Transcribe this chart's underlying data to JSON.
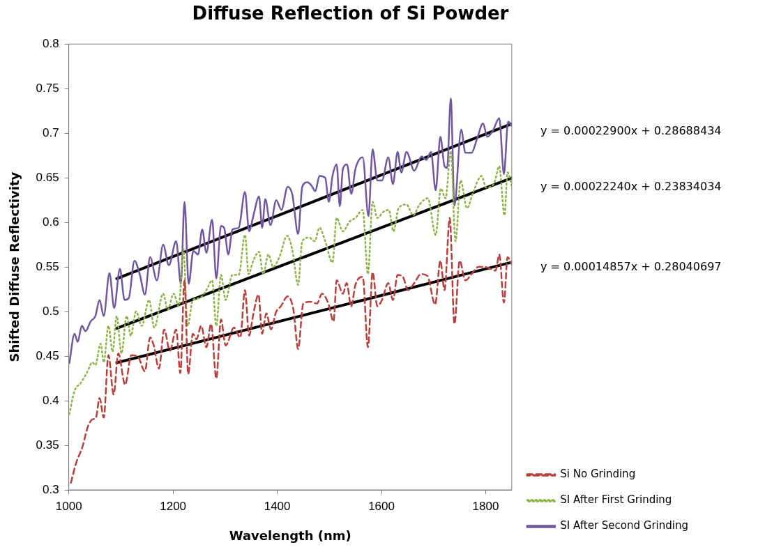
{
  "chart_data": {
    "type": "line",
    "title": "Diffuse Reflection of Si Powder",
    "xlabel": "Wavelength (nm)",
    "ylabel": "Shifted Diffuse Reflectivity",
    "xlim": [
      1000,
      1850
    ],
    "xticks": [
      1000,
      1200,
      1400,
      1600,
      1800
    ],
    "ylim": [
      0.3,
      0.8
    ],
    "yticks": [
      0.3,
      0.35,
      0.4,
      0.45,
      0.5,
      0.55,
      0.6,
      0.65,
      0.7,
      0.75,
      0.8
    ],
    "legend": "right",
    "marker": "none",
    "annotations": [
      "y = 0.00022900x + 0.28688434",
      "y = 0.00022240x + 0.23834034",
      "y = 0.00014857x + 0.28040697"
    ],
    "series": [
      {
        "name": "Si No Grinding",
        "color": "#b7403d",
        "line_style": "dashed",
        "x": [
          1004,
          1014,
          1026,
          1036,
          1045,
          1052,
          1059,
          1067,
          1076,
          1086,
          1095,
          1108,
          1120,
          1133,
          1146,
          1156,
          1163,
          1173,
          1183,
          1194,
          1206,
          1214,
          1222,
          1229,
          1238,
          1245,
          1254,
          1264,
          1273,
          1283,
          1292,
          1301,
          1317,
          1329,
          1338,
          1346,
          1354,
          1364,
          1371,
          1379,
          1388,
          1398,
          1407,
          1420,
          1431,
          1440,
          1450,
          1464,
          1476,
          1486,
          1498,
          1508,
          1514,
          1526,
          1533,
          1542,
          1550,
          1564,
          1574,
          1583,
          1592,
          1601,
          1613,
          1622,
          1631,
          1641,
          1651,
          1663,
          1676,
          1688,
          1703,
          1713,
          1721,
          1731,
          1740,
          1750,
          1761,
          1773,
          1786,
          1798,
          1819,
          1826,
          1835,
          1842,
          1850
        ],
        "values": [
          0.308,
          0.33,
          0.348,
          0.37,
          0.379,
          0.381,
          0.403,
          0.381,
          0.451,
          0.407,
          0.453,
          0.418,
          0.451,
          0.449,
          0.433,
          0.471,
          0.462,
          0.436,
          0.48,
          0.456,
          0.48,
          0.431,
          0.535,
          0.43,
          0.475,
          0.469,
          0.484,
          0.46,
          0.486,
          0.425,
          0.491,
          0.462,
          0.482,
          0.471,
          0.524,
          0.473,
          0.497,
          0.519,
          0.475,
          0.498,
          0.48,
          0.5,
          0.506,
          0.517,
          0.502,
          0.458,
          0.509,
          0.511,
          0.509,
          0.52,
          0.509,
          0.489,
          0.535,
          0.52,
          0.532,
          0.506,
          0.53,
          0.539,
          0.46,
          0.544,
          0.506,
          0.513,
          0.532,
          0.513,
          0.541,
          0.539,
          0.524,
          0.532,
          0.542,
          0.54,
          0.508,
          0.557,
          0.524,
          0.605,
          0.486,
          0.557,
          0.535,
          0.542,
          0.55,
          0.55,
          0.546,
          0.564,
          0.51,
          0.561,
          0.553
        ]
      },
      {
        "name": "SI After First Grinding",
        "color": "#8db347",
        "line_style": "dotted",
        "x": [
          1001,
          1011,
          1023,
          1036,
          1045,
          1051,
          1061,
          1067,
          1076,
          1084,
          1092,
          1101,
          1111,
          1119,
          1129,
          1140,
          1154,
          1164,
          1181,
          1190,
          1201,
          1211,
          1220,
          1228,
          1238,
          1251,
          1264,
          1275,
          1283,
          1292,
          1301,
          1314,
          1326,
          1338,
          1345,
          1354,
          1365,
          1373,
          1383,
          1392,
          1404,
          1419,
          1429,
          1440,
          1448,
          1461,
          1472,
          1481,
          1492,
          1506,
          1514,
          1526,
          1539,
          1550,
          1564,
          1574,
          1583,
          1592,
          1604,
          1614,
          1623,
          1633,
          1648,
          1661,
          1673,
          1689,
          1704,
          1714,
          1723,
          1733,
          1742,
          1752,
          1764,
          1776,
          1792,
          1801,
          1817,
          1826,
          1836,
          1842,
          1850
        ],
        "values": [
          0.385,
          0.411,
          0.42,
          0.433,
          0.443,
          0.44,
          0.464,
          0.443,
          0.484,
          0.455,
          0.495,
          0.453,
          0.495,
          0.473,
          0.5,
          0.484,
          0.513,
          0.482,
          0.52,
          0.502,
          0.52,
          0.506,
          0.57,
          0.484,
          0.513,
          0.515,
          0.524,
          0.535,
          0.484,
          0.541,
          0.513,
          0.541,
          0.541,
          0.586,
          0.542,
          0.557,
          0.567,
          0.542,
          0.564,
          0.55,
          0.561,
          0.585,
          0.569,
          0.53,
          0.579,
          0.583,
          0.579,
          0.594,
          0.579,
          0.555,
          0.605,
          0.59,
          0.601,
          0.605,
          0.614,
          0.542,
          0.623,
          0.605,
          0.612,
          0.614,
          0.59,
          0.616,
          0.62,
          0.608,
          0.62,
          0.627,
          0.586,
          0.638,
          0.627,
          0.68,
          0.579,
          0.647,
          0.616,
          0.634,
          0.652,
          0.639,
          0.645,
          0.663,
          0.608,
          0.656,
          0.641
        ]
      },
      {
        "name": "SI After Second Grinding",
        "color": "#7057a0",
        "line_style": "solid",
        "x": [
          1001,
          1011,
          1017,
          1025,
          1032,
          1042,
          1051,
          1059,
          1067,
          1078,
          1087,
          1098,
          1107,
          1115,
          1126,
          1136,
          1146,
          1156,
          1169,
          1181,
          1192,
          1206,
          1215,
          1222,
          1230,
          1239,
          1248,
          1256,
          1264,
          1275,
          1283,
          1292,
          1298,
          1306,
          1314,
          1326,
          1338,
          1346,
          1354,
          1365,
          1371,
          1377,
          1387,
          1398,
          1408,
          1420,
          1429,
          1440,
          1448,
          1458,
          1466,
          1473,
          1481,
          1492,
          1499,
          1506,
          1514,
          1520,
          1526,
          1534,
          1542,
          1550,
          1564,
          1575,
          1583,
          1592,
          1601,
          1613,
          1622,
          1631,
          1638,
          1648,
          1663,
          1677,
          1686,
          1695,
          1704,
          1713,
          1721,
          1726,
          1733,
          1740,
          1753,
          1761,
          1773,
          1783,
          1795,
          1803,
          1814,
          1826,
          1835,
          1843,
          1850
        ],
        "values": [
          0.442,
          0.475,
          0.466,
          0.484,
          0.478,
          0.489,
          0.495,
          0.513,
          0.495,
          0.543,
          0.504,
          0.548,
          0.513,
          0.515,
          0.557,
          0.542,
          0.519,
          0.561,
          0.535,
          0.575,
          0.552,
          0.579,
          0.531,
          0.623,
          0.531,
          0.568,
          0.564,
          0.592,
          0.566,
          0.603,
          0.537,
          0.596,
          0.594,
          0.564,
          0.592,
          0.594,
          0.634,
          0.59,
          0.607,
          0.629,
          0.594,
          0.626,
          0.597,
          0.625,
          0.614,
          0.64,
          0.631,
          0.587,
          0.64,
          0.645,
          0.641,
          0.635,
          0.652,
          0.65,
          0.623,
          0.652,
          0.665,
          0.618,
          0.66,
          0.665,
          0.632,
          0.66,
          0.673,
          0.607,
          0.682,
          0.647,
          0.647,
          0.673,
          0.643,
          0.679,
          0.656,
          0.679,
          0.658,
          0.674,
          0.67,
          0.679,
          0.636,
          0.696,
          0.663,
          0.661,
          0.739,
          0.619,
          0.704,
          0.678,
          0.678,
          0.693,
          0.711,
          0.696,
          0.703,
          0.717,
          0.654,
          0.713,
          0.708
        ]
      },
      {
        "type": "line",
        "color": "#000000",
        "line_style": "solid",
        "x": [
          1092,
          1850
        ],
        "values": [
          0.5369,
          0.7105
        ]
      },
      {
        "type": "line",
        "color": "#000000",
        "line_style": "solid",
        "x": [
          1092,
          1850
        ],
        "values": [
          0.4812,
          0.6498
        ]
      },
      {
        "type": "line",
        "color": "#000000",
        "line_style": "solid",
        "x": [
          1092,
          1850
        ],
        "values": [
          0.4426,
          0.5553
        ]
      }
    ]
  }
}
